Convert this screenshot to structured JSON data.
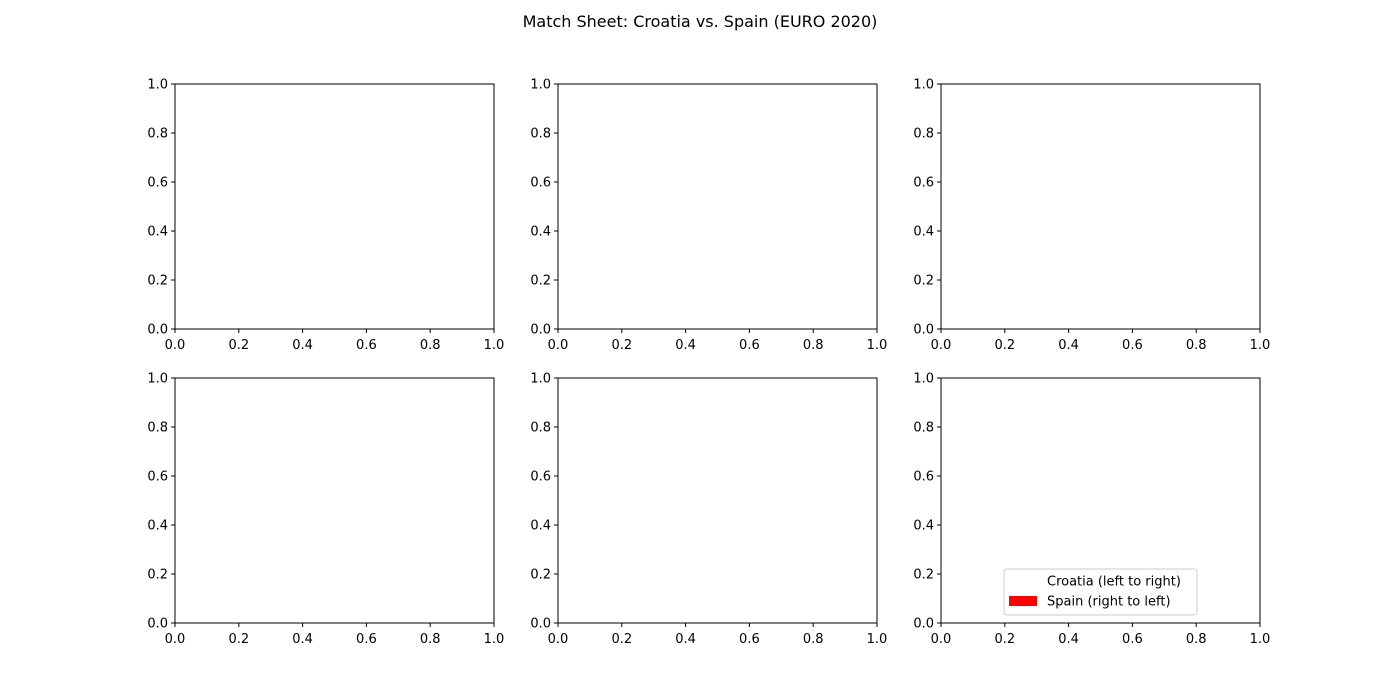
{
  "chart_data": {
    "title": "Match Sheet: Croatia vs. Spain (EURO 2020)",
    "subplots": [
      {
        "type": "empty",
        "xlim": [
          0.0,
          1.0
        ],
        "ylim": [
          0.0,
          1.0
        ],
        "xticks": [
          "0.0",
          "0.2",
          "0.4",
          "0.6",
          "0.8",
          "1.0"
        ],
        "yticks": [
          "0.0",
          "0.2",
          "0.4",
          "0.6",
          "0.8",
          "1.0"
        ]
      },
      {
        "type": "empty",
        "xlim": [
          0.0,
          1.0
        ],
        "ylim": [
          0.0,
          1.0
        ],
        "xticks": [
          "0.0",
          "0.2",
          "0.4",
          "0.6",
          "0.8",
          "1.0"
        ],
        "yticks": [
          "0.0",
          "0.2",
          "0.4",
          "0.6",
          "0.8",
          "1.0"
        ]
      },
      {
        "type": "empty",
        "xlim": [
          0.0,
          1.0
        ],
        "ylim": [
          0.0,
          1.0
        ],
        "xticks": [
          "0.0",
          "0.2",
          "0.4",
          "0.6",
          "0.8",
          "1.0"
        ],
        "yticks": [
          "0.0",
          "0.2",
          "0.4",
          "0.6",
          "0.8",
          "1.0"
        ]
      },
      {
        "type": "empty",
        "xlim": [
          0.0,
          1.0
        ],
        "ylim": [
          0.0,
          1.0
        ],
        "xticks": [
          "0.0",
          "0.2",
          "0.4",
          "0.6",
          "0.8",
          "1.0"
        ],
        "yticks": [
          "0.0",
          "0.2",
          "0.4",
          "0.6",
          "0.8",
          "1.0"
        ]
      },
      {
        "type": "empty",
        "xlim": [
          0.0,
          1.0
        ],
        "ylim": [
          0.0,
          1.0
        ],
        "xticks": [
          "0.0",
          "0.2",
          "0.4",
          "0.6",
          "0.8",
          "1.0"
        ],
        "yticks": [
          "0.0",
          "0.2",
          "0.4",
          "0.6",
          "0.8",
          "1.0"
        ]
      },
      {
        "type": "empty",
        "xlim": [
          0.0,
          1.0
        ],
        "ylim": [
          0.0,
          1.0
        ],
        "xticks": [
          "0.0",
          "0.2",
          "0.4",
          "0.6",
          "0.8",
          "1.0"
        ],
        "yticks": [
          "0.0",
          "0.2",
          "0.4",
          "0.6",
          "0.8",
          "1.0"
        ],
        "legend": {
          "location": "lower-right",
          "entries": [
            {
              "label": "Croatia (left to right)",
              "color": "#ffffff"
            },
            {
              "label": "Spain (right to left)",
              "color": "#ff0000"
            }
          ]
        }
      }
    ]
  }
}
